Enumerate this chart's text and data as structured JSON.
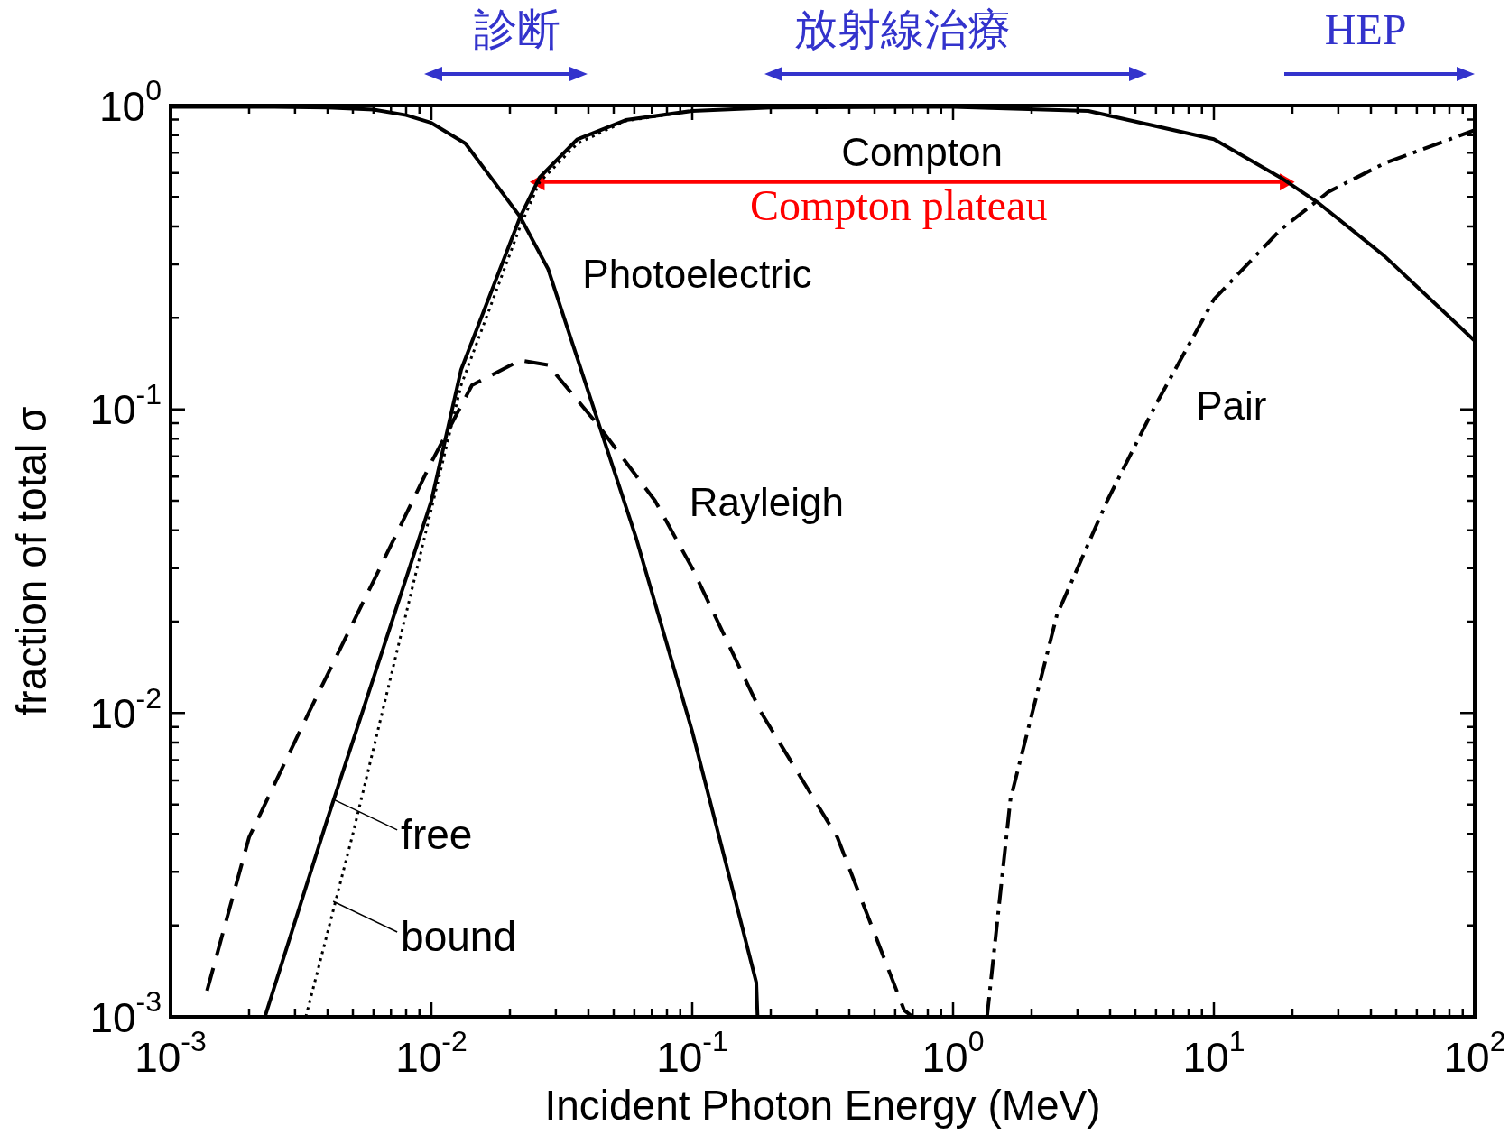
{
  "chart_data": {
    "type": "line",
    "xlabel": "Incident Photon Energy (MeV)",
    "ylabel": "fraction of total σ",
    "log": "xy",
    "legend": false,
    "xlim": [
      0.001,
      100
    ],
    "ylim": [
      0.001,
      1
    ],
    "xticks": [
      {
        "value": 0.001,
        "label": "10$^{-3}$"
      },
      {
        "value": 0.002,
        "label": null
      },
      {
        "value": 0.003,
        "label": null
      },
      {
        "value": 0.004,
        "label": null
      },
      {
        "value": 0.005,
        "label": null
      },
      {
        "value": 0.006,
        "label": null
      },
      {
        "value": 0.007,
        "label": null
      },
      {
        "value": 0.008,
        "label": null
      },
      {
        "value": 0.009,
        "label": null
      },
      {
        "value": 0.01,
        "label": "10$^{-2}$"
      },
      {
        "value": 0.02,
        "label": null
      },
      {
        "value": 0.03,
        "label": null
      },
      {
        "value": 0.04,
        "label": null
      },
      {
        "value": 0.05,
        "label": null
      },
      {
        "value": 0.06,
        "label": null
      },
      {
        "value": 0.07,
        "label": null
      },
      {
        "value": 0.08,
        "label": null
      },
      {
        "value": 0.09,
        "label": null
      },
      {
        "value": 0.1,
        "label": "10$^{-1}$"
      },
      {
        "value": 0.2,
        "label": null
      },
      {
        "value": 0.3,
        "label": null
      },
      {
        "value": 0.4,
        "label": null
      },
      {
        "value": 0.5,
        "label": null
      },
      {
        "value": 0.6,
        "label": null
      },
      {
        "value": 0.7,
        "label": null
      },
      {
        "value": 0.8,
        "label": null
      },
      {
        "value": 0.9,
        "label": null
      },
      {
        "value": 1,
        "label": "10$^{0}$"
      },
      {
        "value": 2,
        "label": null
      },
      {
        "value": 3,
        "label": null
      },
      {
        "value": 4,
        "label": null
      },
      {
        "value": 5,
        "label": null
      },
      {
        "value": 6,
        "label": null
      },
      {
        "value": 7,
        "label": null
      },
      {
        "value": 8,
        "label": null
      },
      {
        "value": 9,
        "label": null
      },
      {
        "value": 10,
        "label": "10$^{1}$"
      },
      {
        "value": 20,
        "label": null
      },
      {
        "value": 30,
        "label": null
      },
      {
        "value": 40,
        "label": null
      },
      {
        "value": 50,
        "label": null
      },
      {
        "value": 60,
        "label": null
      },
      {
        "value": 70,
        "label": null
      },
      {
        "value": 80,
        "label": null
      },
      {
        "value": 90,
        "label": null
      },
      {
        "value": 100,
        "label": "10$^{2}$"
      }
    ],
    "yticks": [
      {
        "value": 0.001,
        "label": "10$^{-3}$"
      },
      {
        "value": 0.002,
        "label": null
      },
      {
        "value": 0.003,
        "label": null
      },
      {
        "value": 0.004,
        "label": null
      },
      {
        "value": 0.005,
        "label": null
      },
      {
        "value": 0.006,
        "label": null
      },
      {
        "value": 0.007,
        "label": null
      },
      {
        "value": 0.008,
        "label": null
      },
      {
        "value": 0.009,
        "label": null
      },
      {
        "value": 0.01,
        "label": "10$^{-2}$"
      },
      {
        "value": 0.02,
        "label": null
      },
      {
        "value": 0.03,
        "label": null
      },
      {
        "value": 0.04,
        "label": null
      },
      {
        "value": 0.05,
        "label": null
      },
      {
        "value": 0.06,
        "label": null
      },
      {
        "value": 0.07,
        "label": null
      },
      {
        "value": 0.08,
        "label": null
      },
      {
        "value": 0.09,
        "label": null
      },
      {
        "value": 0.1,
        "label": "10$^{-1}$"
      },
      {
        "value": 0.2,
        "label": null
      },
      {
        "value": 0.3,
        "label": null
      },
      {
        "value": 0.4,
        "label": null
      },
      {
        "value": 0.5,
        "label": null
      },
      {
        "value": 0.6,
        "label": null
      },
      {
        "value": 0.7,
        "label": null
      },
      {
        "value": 0.8,
        "label": null
      },
      {
        "value": 0.9,
        "label": null
      },
      {
        "value": 1,
        "label": "10$^{0}$"
      }
    ],
    "series": [
      {
        "color": "#000000",
        "line_style": "solid",
        "x": [
          0.001,
          0.0025,
          0.004,
          0.006,
          0.008,
          0.01,
          0.0135,
          0.0169,
          0.0219,
          0.028,
          0.0414,
          0.061,
          0.1,
          0.176,
          0.178
        ],
        "values": [
          0.99,
          0.99,
          0.985,
          0.97,
          0.93,
          0.877,
          0.75,
          0.58,
          0.43,
          0.29,
          0.104,
          0.0376,
          0.0087,
          0.0013,
          0.001
        ]
      },
      {
        "color": "#000000",
        "line_style": "solid",
        "x": [
          0.0023,
          0.004,
          0.01,
          0.013,
          0.0219,
          0.026,
          0.0363,
          0.0556,
          0.1,
          0.2,
          1,
          3.3,
          10,
          18,
          25,
          45,
          100
        ],
        "values": [
          0.001,
          0.0045,
          0.05,
          0.135,
          0.43,
          0.58,
          0.775,
          0.896,
          0.96,
          0.985,
          0.99,
          0.96,
          0.775,
          0.58,
          0.48,
          0.32,
          0.168
        ]
      },
      {
        "color": "#000000",
        "line_style": "dotted",
        "x": [
          0.0033,
          0.005,
          0.01,
          0.013,
          0.0219,
          0.026,
          0.0363,
          0.0556,
          0.1
        ],
        "values": [
          0.001,
          0.004,
          0.047,
          0.12,
          0.4,
          0.56,
          0.75,
          0.89,
          0.96
        ]
      },
      {
        "color": "#000000",
        "line_style": "dashed",
        "x": [
          0.00138,
          0.002,
          0.0034,
          0.0061,
          0.01,
          0.0143,
          0.0219,
          0.028,
          0.043,
          0.072,
          0.1,
          0.183,
          0.36,
          0.65,
          0.7
        ],
        "values": [
          0.00122,
          0.0039,
          0.0101,
          0.028,
          0.067,
          0.12,
          0.145,
          0.14,
          0.09,
          0.05,
          0.03,
          0.0101,
          0.0039,
          0.00105,
          0.001
        ]
      },
      {
        "color": "#000000",
        "line_style": "dashdot",
        "x": [
          1.35,
          1.66,
          2.5,
          3.9,
          6,
          10,
          18,
          27.5,
          45,
          100
        ],
        "values": [
          0.001,
          0.0052,
          0.021,
          0.05,
          0.104,
          0.23,
          0.39,
          0.52,
          0.645,
          0.83
        ]
      },
      {
        "name": "Compton plateau",
        "color": "#ff0000",
        "line_style": "solid",
        "marker": "triangle",
        "x": [
          0.026,
          18.7
        ],
        "values": [
          0.56,
          0.56
        ]
      }
    ],
    "annotations": [
      "診断",
      "放射線治療",
      "HEP",
      "Compton",
      "Photoelectric",
      "Rayleigh",
      "Pair",
      {
        "text": "free",
        "x": 0.0042,
        "y": 0.0052
      },
      {
        "text": "bound",
        "x": 0.0042,
        "y": 0.0024
      }
    ]
  }
}
